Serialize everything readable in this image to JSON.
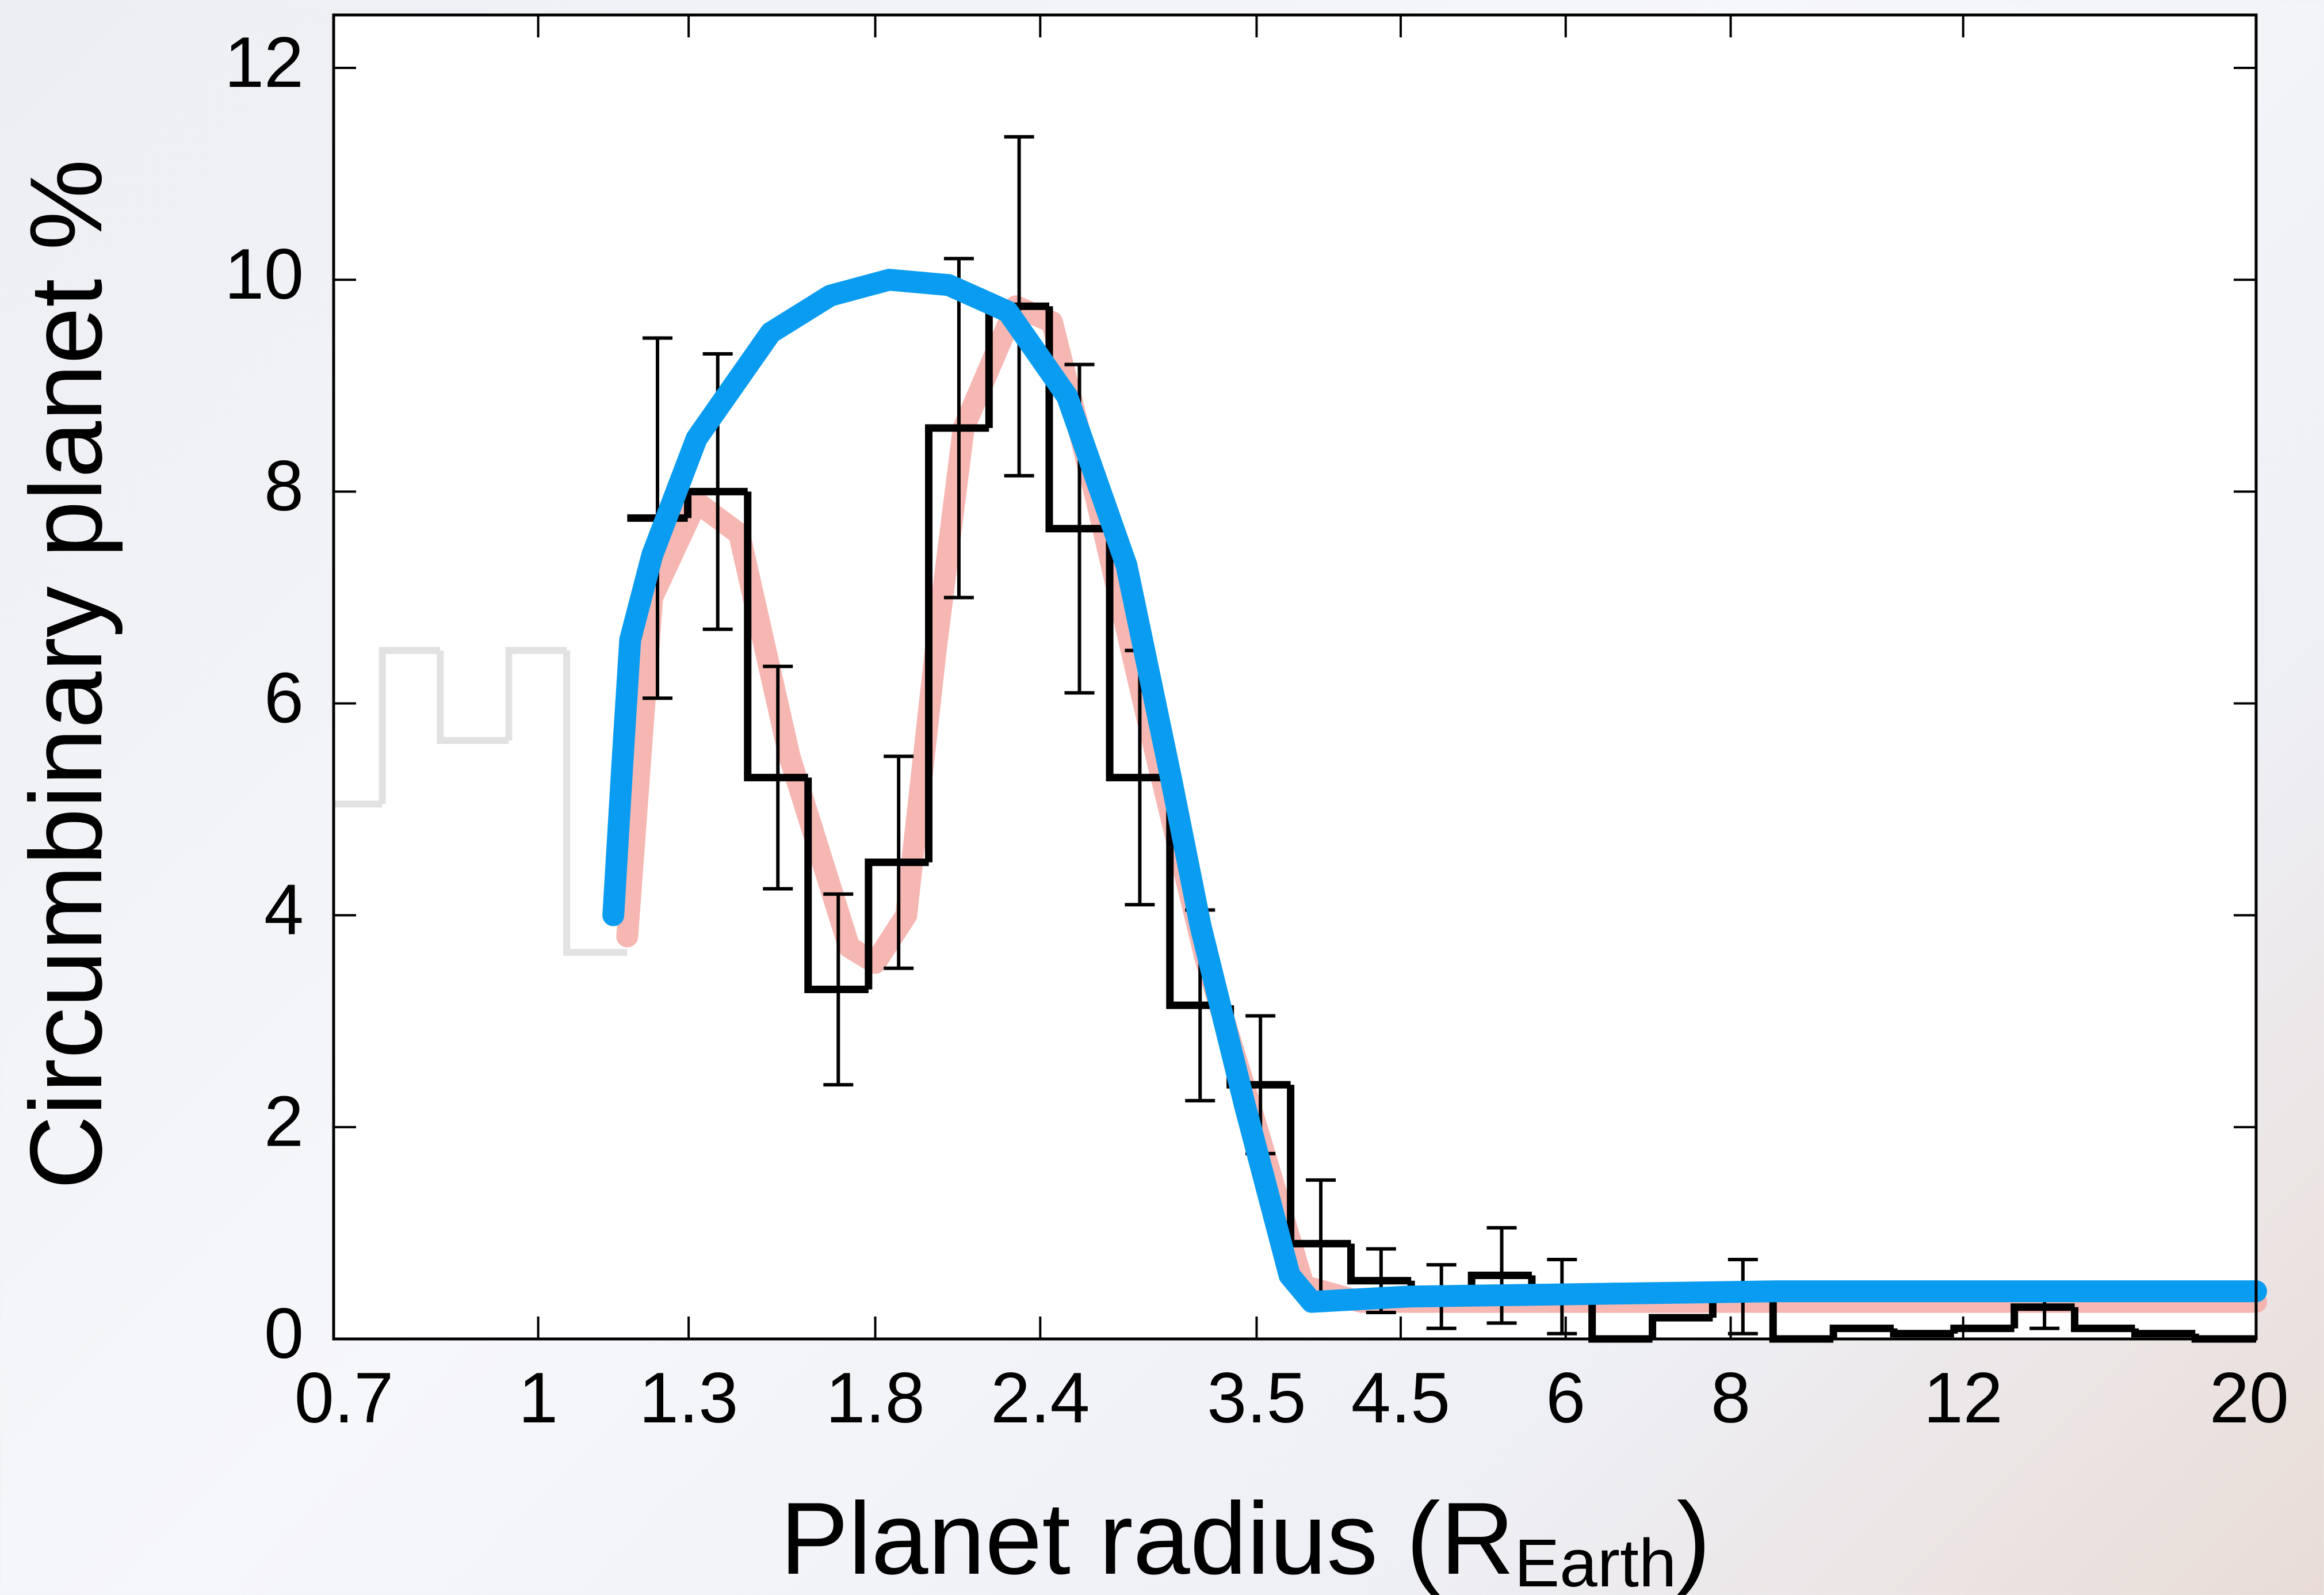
{
  "chart_data": {
    "type": "histogram",
    "ylabel": "Circumbinary planet %",
    "xlabel": {
      "text": "Planet radius (R",
      "subscript": "Earth",
      "suffix": ")"
    },
    "xscale": "log",
    "xlim": [
      0.7,
      20
    ],
    "xticks": [
      0.7,
      1,
      1.3,
      1.8,
      2.4,
      3.5,
      4.5,
      6,
      8,
      12,
      20
    ],
    "ylim": [
      0,
      12.5
    ],
    "yticks": [
      0,
      2,
      4,
      6,
      8,
      10,
      12
    ],
    "histograms": [
      {
        "color": "#e2e2e2",
        "bins": [
          0.7,
          0.762,
          0.843,
          0.95,
          1.051,
          1.168
        ],
        "counts": [
          5.05,
          6.5,
          5.65,
          6.5,
          3.65
        ]
      },
      {
        "color": "#000000",
        "bins": [
          1.168,
          1.298,
          1.441,
          1.601,
          1.779,
          1.976,
          2.195,
          2.438,
          2.709,
          3.009,
          3.343,
          3.714,
          4.126,
          4.583,
          5.092,
          5.656,
          6.283,
          6.98,
          7.754,
          8.614,
          9.57,
          10.631,
          11.81,
          13.12,
          14.575,
          16.192,
          17.987,
          20
        ],
        "counts": [
          7.75,
          8.0,
          5.3,
          3.3,
          4.5,
          8.6,
          9.75,
          7.65,
          5.3,
          3.15,
          2.4,
          0.9,
          0.55,
          0.4,
          0.6,
          0.4,
          0,
          0.2,
          0.4,
          0,
          0.1,
          0.05,
          0.1,
          0.3,
          0.1,
          0.05,
          0
        ],
        "errors": [
          1.7,
          1.3,
          1.05,
          0.9,
          1.0,
          1.6,
          1.6,
          1.55,
          1.2,
          0.9,
          0.65,
          0.6,
          0.3,
          0.3,
          0.45,
          0.35,
          null,
          null,
          0.35,
          null,
          null,
          null,
          null,
          0.2,
          null,
          null,
          null
        ]
      }
    ],
    "curves": [
      {
        "color": "#f4aaa4",
        "x": [
          1.168,
          1.22,
          1.318,
          1.42,
          1.55,
          1.72,
          1.8,
          1.9,
          2.0,
          2.1,
          2.3,
          2.45,
          2.65,
          2.9,
          3.2,
          3.5,
          3.8,
          4.2,
          20
        ],
        "y": [
          3.8,
          7.0,
          7.9,
          7.6,
          5.5,
          3.7,
          3.55,
          4.0,
          6.5,
          8.6,
          9.75,
          9.6,
          7.9,
          5.8,
          3.6,
          2.0,
          0.5,
          0.35,
          0.35
        ]
      },
      {
        "color": "#0a9cf0",
        "x": [
          1.14,
          1.159,
          1.174,
          1.22,
          1.318,
          1.5,
          1.664,
          1.844,
          2.046,
          2.268,
          2.515,
          2.79,
          3.014,
          3.174,
          3.43,
          3.707,
          3.853,
          4.557,
          8.69,
          20
        ],
        "y": [
          4.0,
          5.5,
          6.6,
          7.4,
          8.5,
          9.5,
          9.85,
          10.0,
          9.95,
          9.7,
          8.9,
          7.3,
          5.3,
          3.9,
          2.2,
          0.6,
          0.35,
          0.4,
          0.45,
          0.45
        ]
      }
    ]
  }
}
